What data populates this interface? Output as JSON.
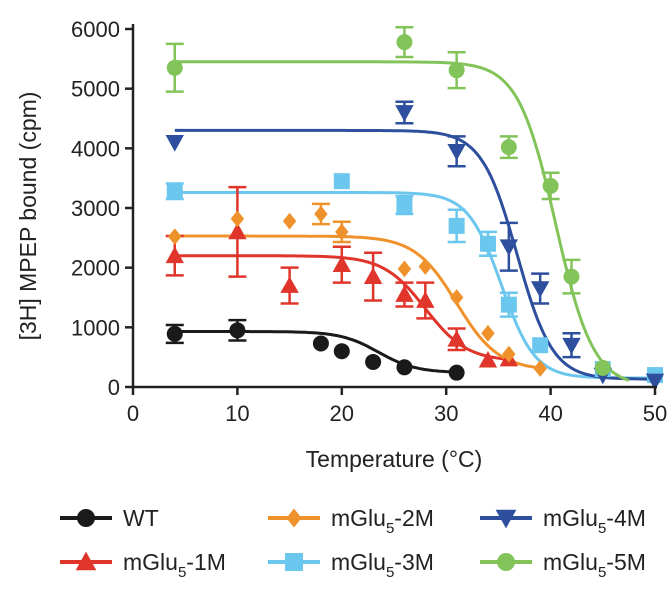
{
  "chart_data": {
    "type": "scatter",
    "title": "",
    "xlabel": "Temperature (°C)",
    "ylabel": "[3H] MPEP bound (cpm)",
    "xlim": [
      0,
      50
    ],
    "ylim": [
      0,
      6000
    ],
    "xticks": [
      0,
      10,
      20,
      30,
      40,
      50
    ],
    "yticks": [
      0,
      1000,
      2000,
      3000,
      4000,
      5000,
      6000
    ],
    "legend_position": "bottom",
    "series": [
      {
        "name": "WT",
        "legend_base": "WT",
        "legend_sub": "",
        "legend_rest": "",
        "color": "#1a1a1a",
        "marker": "circle",
        "points": [
          {
            "x": 4,
            "y": 890,
            "err": 150
          },
          {
            "x": 10,
            "y": 950,
            "err": 170
          },
          {
            "x": 18,
            "y": 730,
            "err": 0
          },
          {
            "x": 20,
            "y": 600,
            "err": 0
          },
          {
            "x": 23,
            "y": 420,
            "err": 0
          },
          {
            "x": 26,
            "y": 330,
            "err": 0
          },
          {
            "x": 31,
            "y": 240,
            "err": 0
          }
        ],
        "fit": {
          "top": 930,
          "bottom": 240,
          "mid": 23.5,
          "slope": 1.8,
          "from": 4,
          "to": 31
        }
      },
      {
        "name": "mGlu5-1M",
        "legend_base": "mGlu",
        "legend_sub": "5",
        "legend_rest": "-1M",
        "color": "#e0352b",
        "marker": "triangle-up",
        "points": [
          {
            "x": 4,
            "y": 2200,
            "err": 330
          },
          {
            "x": 10,
            "y": 2600,
            "err": 750
          },
          {
            "x": 15,
            "y": 1700,
            "err": 300
          },
          {
            "x": 20,
            "y": 2050,
            "err": 300
          },
          {
            "x": 23,
            "y": 1850,
            "err": 400
          },
          {
            "x": 26,
            "y": 1550,
            "err": 200
          },
          {
            "x": 28,
            "y": 1450,
            "err": 300
          },
          {
            "x": 31,
            "y": 800,
            "err": 180
          },
          {
            "x": 34,
            "y": 450,
            "err": 0
          },
          {
            "x": 36,
            "y": 470,
            "err": 0
          }
        ],
        "fit": {
          "top": 2200,
          "bottom": 430,
          "mid": 28,
          "slope": 2.0,
          "from": 4,
          "to": 36
        }
      },
      {
        "name": "mGlu5-2M",
        "legend_base": "mGlu",
        "legend_sub": "5",
        "legend_rest": "-2M",
        "color": "#f0922b",
        "marker": "diamond",
        "points": [
          {
            "x": 4,
            "y": 2520,
            "err": 0
          },
          {
            "x": 10,
            "y": 2820,
            "err": 0
          },
          {
            "x": 15,
            "y": 2780,
            "err": 0
          },
          {
            "x": 18,
            "y": 2900,
            "err": 170
          },
          {
            "x": 20,
            "y": 2600,
            "err": 170
          },
          {
            "x": 26,
            "y": 1980,
            "err": 0
          },
          {
            "x": 28,
            "y": 2020,
            "err": 0
          },
          {
            "x": 31,
            "y": 1500,
            "err": 0
          },
          {
            "x": 34,
            "y": 900,
            "err": 0
          },
          {
            "x": 36,
            "y": 550,
            "err": 0
          },
          {
            "x": 39,
            "y": 310,
            "err": 0
          }
        ],
        "fit": {
          "top": 2530,
          "bottom": 280,
          "mid": 31,
          "slope": 2.0,
          "from": 4,
          "to": 39
        }
      },
      {
        "name": "mGlu5-3M",
        "legend_base": "mGlu",
        "legend_sub": "5",
        "legend_rest": "-3M",
        "color": "#6cc7ee",
        "marker": "square",
        "points": [
          {
            "x": 4,
            "y": 3280,
            "err": 130
          },
          {
            "x": 20,
            "y": 3450,
            "err": 0
          },
          {
            "x": 26,
            "y": 3050,
            "err": 150
          },
          {
            "x": 31,
            "y": 2700,
            "err": 270
          },
          {
            "x": 34,
            "y": 2400,
            "err": 200
          },
          {
            "x": 36,
            "y": 1380,
            "err": 200
          },
          {
            "x": 39,
            "y": 700,
            "err": 0
          },
          {
            "x": 45,
            "y": 300,
            "err": 0
          },
          {
            "x": 50,
            "y": 200,
            "err": 0
          }
        ],
        "fit": {
          "top": 3260,
          "bottom": 150,
          "mid": 35.3,
          "slope": 1.6,
          "from": 4,
          "to": 50
        }
      },
      {
        "name": "mGlu5-4M",
        "legend_base": "mGlu",
        "legend_sub": "5",
        "legend_rest": "-4M",
        "color": "#2d4f9e",
        "marker": "triangle-down",
        "points": [
          {
            "x": 4,
            "y": 4100,
            "err": 0
          },
          {
            "x": 26,
            "y": 4600,
            "err": 180
          },
          {
            "x": 31,
            "y": 3950,
            "err": 250
          },
          {
            "x": 36,
            "y": 2350,
            "err": 400
          },
          {
            "x": 39,
            "y": 1650,
            "err": 250
          },
          {
            "x": 42,
            "y": 700,
            "err": 200
          },
          {
            "x": 45,
            "y": 200,
            "err": 0
          },
          {
            "x": 50,
            "y": 100,
            "err": 0
          }
        ],
        "fit": {
          "top": 4300,
          "bottom": 130,
          "mid": 36.8,
          "slope": 1.7,
          "from": 4,
          "to": 50
        }
      },
      {
        "name": "mGlu5-5M",
        "legend_base": "mGlu",
        "legend_sub": "5",
        "legend_rest": "-5M",
        "color": "#82c45a",
        "marker": "circle",
        "points": [
          {
            "x": 4,
            "y": 5350,
            "err": 400
          },
          {
            "x": 26,
            "y": 5780,
            "err": 250
          },
          {
            "x": 31,
            "y": 5310,
            "err": 300
          },
          {
            "x": 36,
            "y": 4020,
            "err": 180
          },
          {
            "x": 40,
            "y": 3370,
            "err": 220
          },
          {
            "x": 42,
            "y": 1850,
            "err": 280
          },
          {
            "x": 45,
            "y": 320,
            "err": 0
          }
        ],
        "fit": {
          "top": 5450,
          "bottom": 0,
          "mid": 40.5,
          "slope": 1.8,
          "from": 4,
          "to": 47.5
        }
      }
    ]
  }
}
